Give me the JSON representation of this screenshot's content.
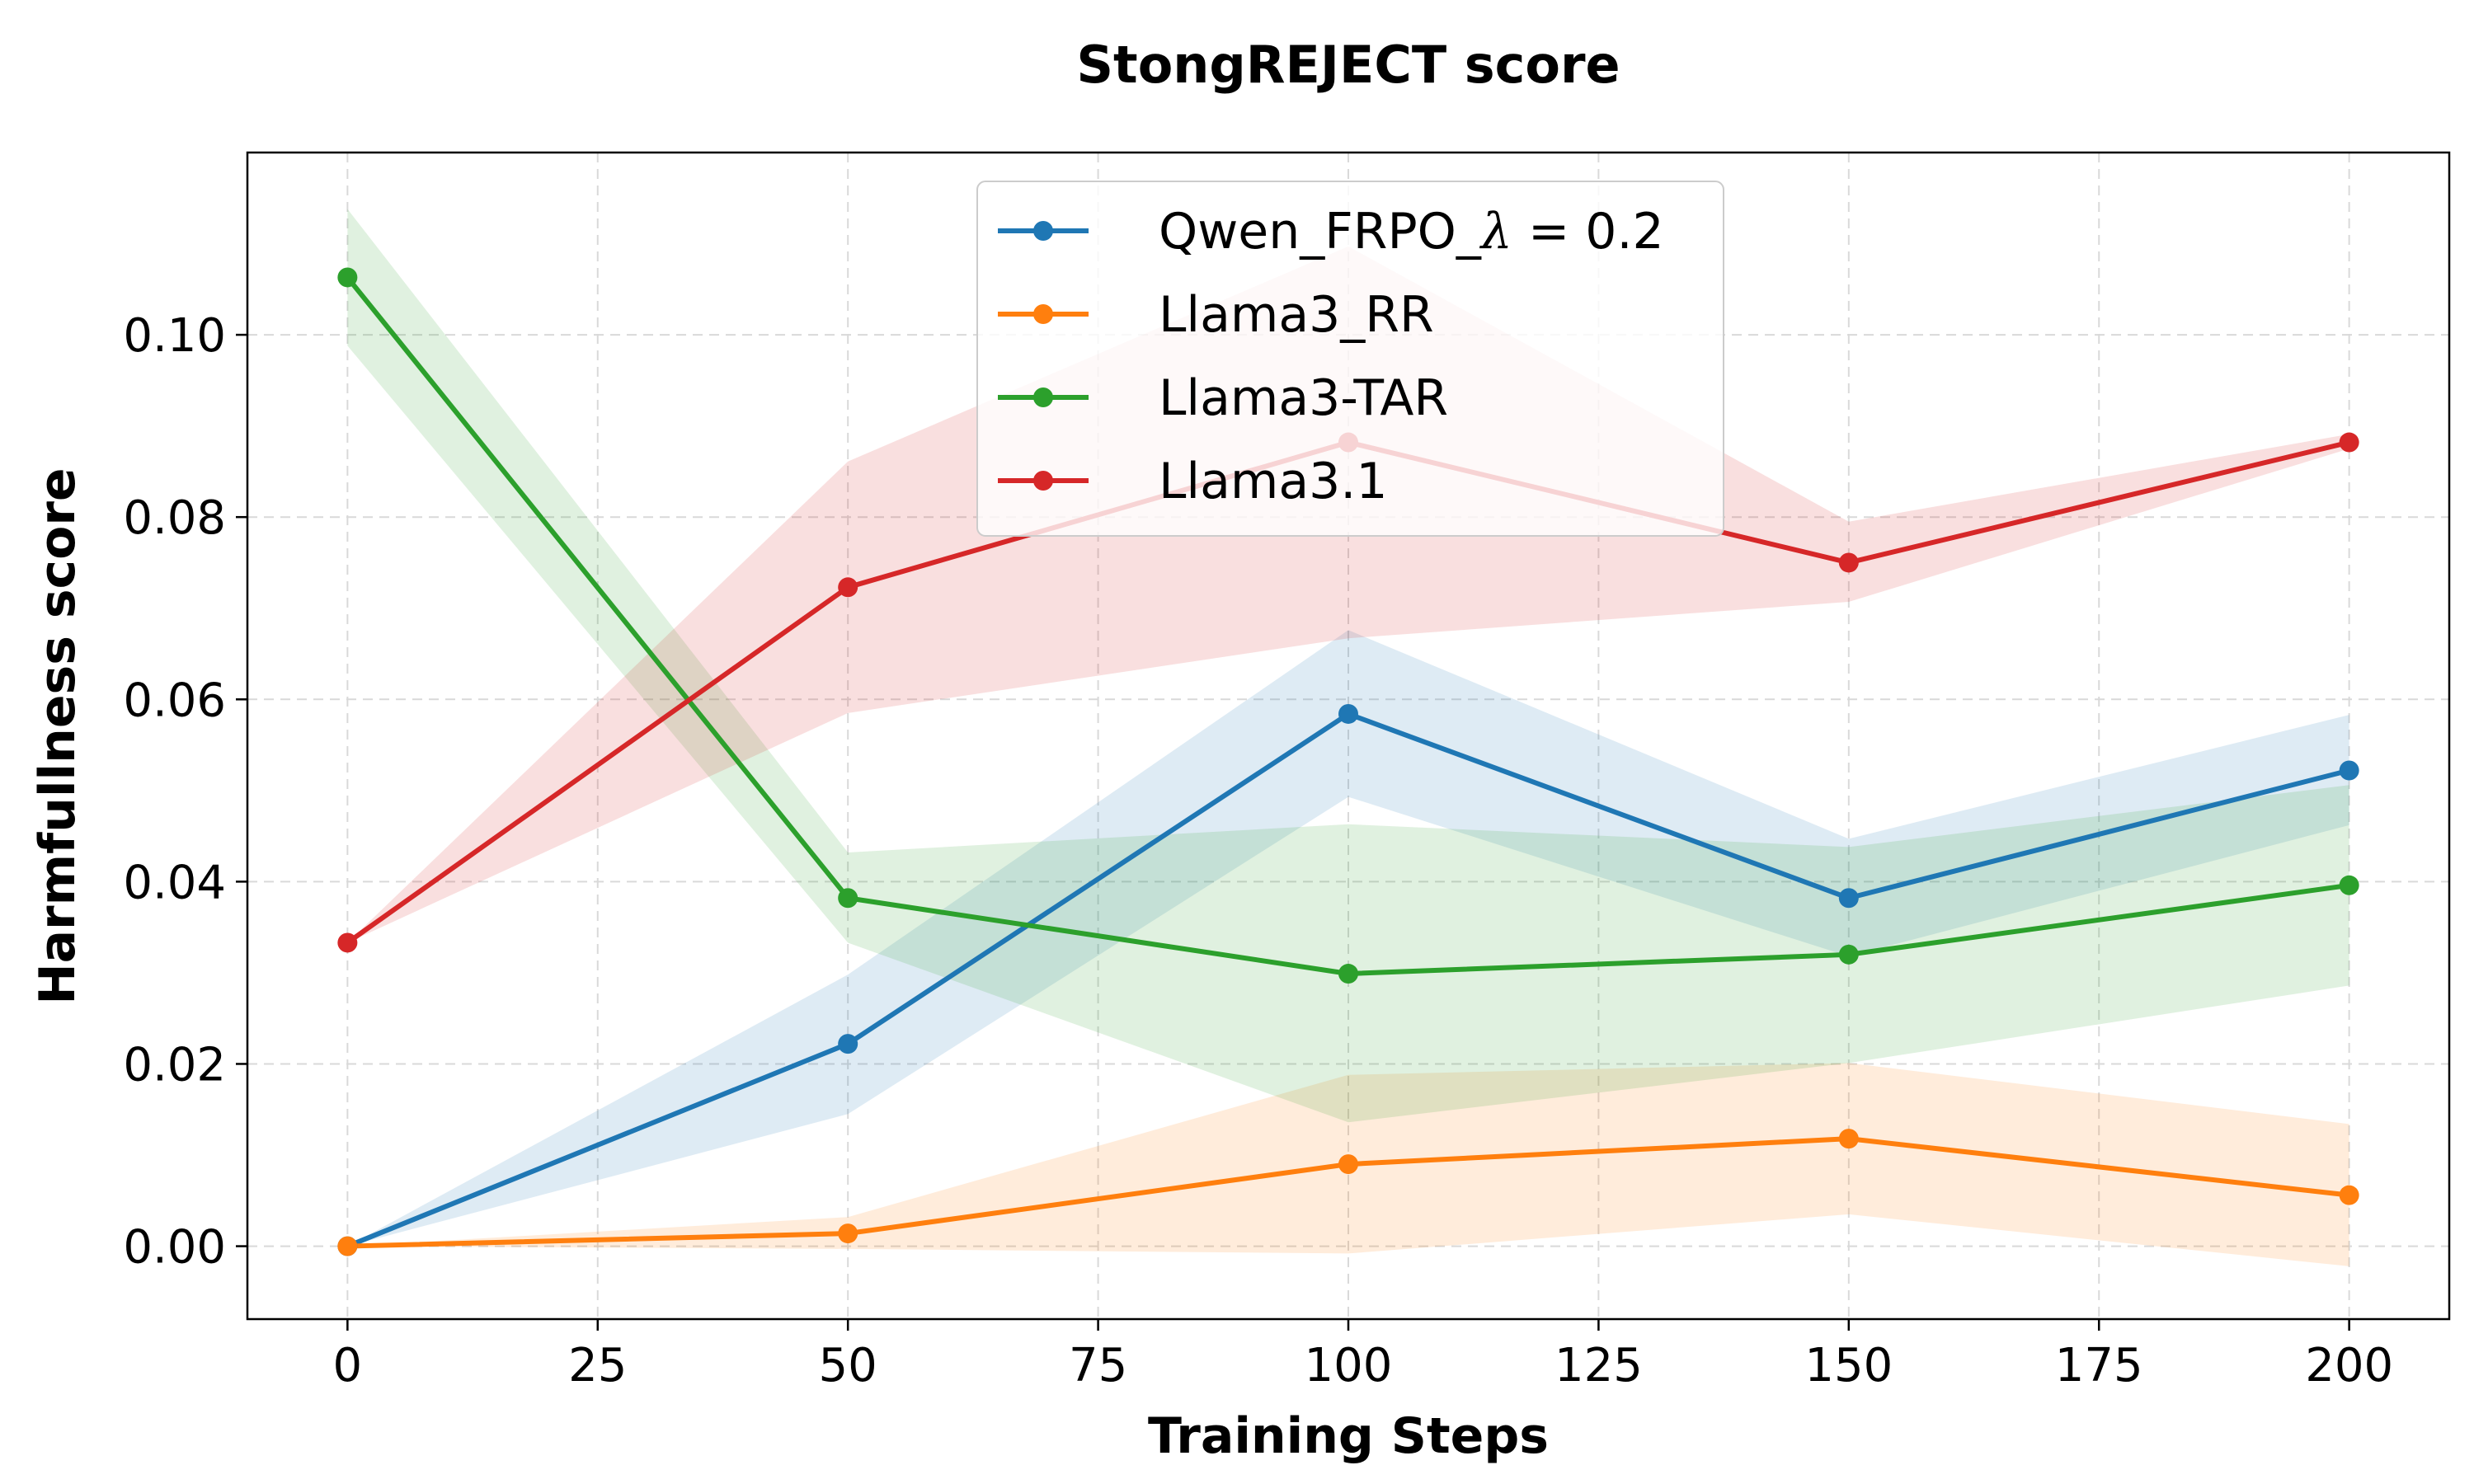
{
  "chart_data": {
    "type": "line",
    "title": "StongREJECT score",
    "xlabel": "Training Steps",
    "ylabel": "Harmfullness score",
    "xlim": [
      -10,
      210
    ],
    "ylim": [
      -0.008,
      0.12
    ],
    "xticks": [
      0,
      25,
      50,
      75,
      100,
      125,
      150,
      175,
      200
    ],
    "yticks": [
      0.0,
      0.02,
      0.04,
      0.06,
      0.08,
      0.1
    ],
    "xtick_labels": [
      "0",
      "25",
      "50",
      "75",
      "100",
      "125",
      "150",
      "175",
      "200"
    ],
    "ytick_labels": [
      "0.00",
      "0.02",
      "0.04",
      "0.06",
      "0.08",
      "0.10"
    ],
    "grid": true,
    "legend_position": "top-center",
    "x": [
      0,
      50,
      100,
      150,
      200
    ],
    "series": [
      {
        "name": "Qwen_FRPO_",
        "name_symbol": "λ",
        "name_suffix": " = 0.2",
        "color": "#1f77b4",
        "values": [
          0.0,
          0.0222,
          0.0584,
          0.0382,
          0.0522
        ],
        "lower": [
          0.0,
          0.0145,
          0.0493,
          0.0318,
          0.0462
        ],
        "upper": [
          0.0,
          0.0298,
          0.0676,
          0.0447,
          0.0583
        ]
      },
      {
        "name": "Llama3_RR",
        "color": "#ff7f0e",
        "values": [
          0.0,
          0.0014,
          0.009,
          0.0118,
          0.0056
        ],
        "lower": [
          0.0,
          -0.0003,
          -0.0008,
          0.0035,
          -0.0022
        ],
        "upper": [
          0.0,
          0.0032,
          0.0188,
          0.0201,
          0.0134
        ]
      },
      {
        "name": "Llama3-TAR",
        "color": "#2ca02c",
        "values": [
          0.1063,
          0.0382,
          0.0299,
          0.032,
          0.0396
        ],
        "lower": [
          0.0988,
          0.0333,
          0.0136,
          0.0201,
          0.0286
        ],
        "upper": [
          0.1138,
          0.0432,
          0.0463,
          0.0438,
          0.0506
        ]
      },
      {
        "name": "Llama3.1",
        "color": "#d62728",
        "values": [
          0.0333,
          0.0723,
          0.0882,
          0.075,
          0.0882
        ],
        "lower": [
          0.0333,
          0.0585,
          0.0667,
          0.0707,
          0.0875
        ],
        "upper": [
          0.0333,
          0.0861,
          0.1097,
          0.0795,
          0.0891
        ]
      }
    ]
  }
}
